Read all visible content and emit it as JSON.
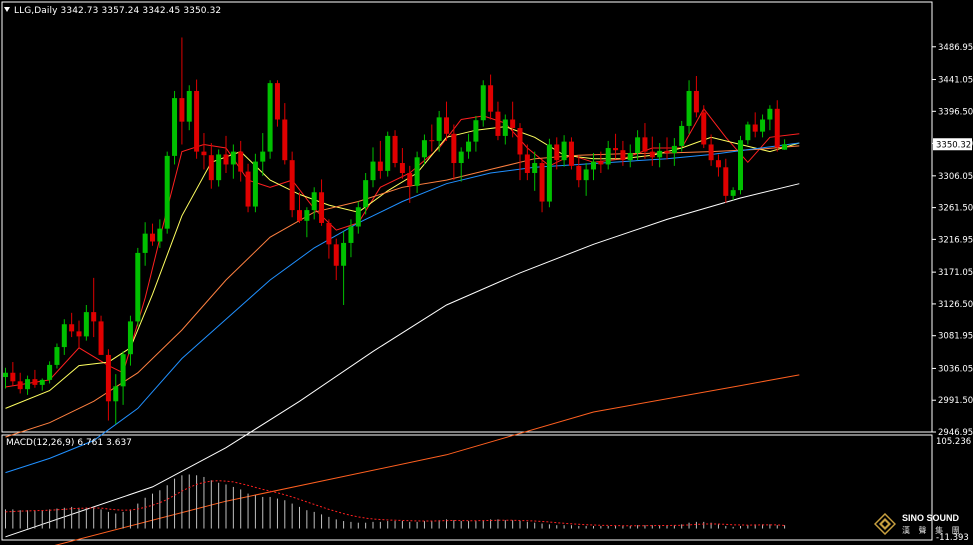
{
  "header": {
    "symbol": "LLG,Daily",
    "open": "3342.73",
    "high": "3357.24",
    "low": "3342.45",
    "close": "3350.32"
  },
  "macd": {
    "label": "MACD(12,26,9)",
    "main": "6.761",
    "signal": "3.637",
    "scale_top": "105.236",
    "scale_bottom": "-11.393"
  },
  "logo": {
    "brand": "SINO SOUND",
    "cn": "漢 聲 集 團"
  },
  "colors": {
    "background": "#000000",
    "bull": "#00c000",
    "bear": "#e00000",
    "ma_red": "#ff2020",
    "ma_yellow": "#ffff60",
    "ma_orange": "#ff8040",
    "ma_blue": "#2090ff",
    "ma_white": "#ffffff",
    "ma_slow_orange": "#ff6020",
    "macd_hist": "#c0c0c0",
    "macd_signal": "#ff2020"
  },
  "chart_data": {
    "type": "candlestick",
    "title": "LLG,Daily",
    "ylim": [
      2946.95,
      3531.5
    ],
    "yticks": [
      "3486.95",
      "3441.05",
      "3396.50",
      "3351.50",
      "3306.05",
      "3261.50",
      "3216.95",
      "3171.05",
      "3126.50",
      "3081.95",
      "3036.05",
      "2991.50",
      "2946.95"
    ],
    "current_price": "3350.32",
    "candles": [
      [
        3024,
        3037,
        3008,
        3030
      ],
      [
        3030,
        3045,
        3012,
        3018
      ],
      [
        3018,
        3030,
        3001,
        3007
      ],
      [
        3007,
        3026,
        2999,
        3021
      ],
      [
        3021,
        3034,
        3009,
        3013
      ],
      [
        3013,
        3022,
        3005,
        3020
      ],
      [
        3020,
        3046,
        3015,
        3041
      ],
      [
        3041,
        3071,
        3036,
        3066
      ],
      [
        3066,
        3105,
        3055,
        3098
      ],
      [
        3098,
        3114,
        3080,
        3088
      ],
      [
        3088,
        3103,
        3065,
        3081
      ],
      [
        3081,
        3125,
        3075,
        3115
      ],
      [
        3115,
        3163,
        3080,
        3102
      ],
      [
        3102,
        3110,
        3060,
        3055
      ],
      [
        3055,
        3063,
        2963,
        2990
      ],
      [
        2990,
        3028,
        2958,
        3011
      ],
      [
        3011,
        3060,
        2985,
        3056
      ],
      [
        3056,
        3110,
        3040,
        3102
      ],
      [
        3102,
        3205,
        3095,
        3198
      ],
      [
        3198,
        3241,
        3180,
        3225
      ],
      [
        3225,
        3239,
        3208,
        3214
      ],
      [
        3214,
        3245,
        3205,
        3232
      ],
      [
        3232,
        3340,
        3225,
        3334
      ],
      [
        3334,
        3425,
        3322,
        3415
      ],
      [
        3415,
        3500,
        3350,
        3382
      ],
      [
        3382,
        3433,
        3370,
        3425
      ],
      [
        3425,
        3441,
        3330,
        3340
      ],
      [
        3340,
        3366,
        3315,
        3335
      ],
      [
        3335,
        3352,
        3288,
        3300
      ],
      [
        3300,
        3343,
        3291,
        3336
      ],
      [
        3336,
        3362,
        3310,
        3322
      ],
      [
        3322,
        3350,
        3302,
        3340
      ],
      [
        3340,
        3355,
        3298,
        3312
      ],
      [
        3312,
        3323,
        3255,
        3263
      ],
      [
        3263,
        3337,
        3255,
        3326
      ],
      [
        3326,
        3366,
        3306,
        3340
      ],
      [
        3340,
        3440,
        3330,
        3436
      ],
      [
        3436,
        3440,
        3375,
        3385
      ],
      [
        3385,
        3408,
        3322,
        3328
      ],
      [
        3328,
        3340,
        3248,
        3258
      ],
      [
        3258,
        3283,
        3240,
        3243
      ],
      [
        3243,
        3262,
        3220,
        3258
      ],
      [
        3258,
        3290,
        3245,
        3283
      ],
      [
        3283,
        3301,
        3236,
        3240
      ],
      [
        3240,
        3245,
        3190,
        3210
      ],
      [
        3210,
        3218,
        3160,
        3180
      ],
      [
        3180,
        3228,
        3125,
        3212
      ],
      [
        3212,
        3245,
        3192,
        3235
      ],
      [
        3235,
        3270,
        3225,
        3262
      ],
      [
        3262,
        3310,
        3252,
        3300
      ],
      [
        3300,
        3346,
        3290,
        3326
      ],
      [
        3326,
        3355,
        3302,
        3313
      ],
      [
        3313,
        3368,
        3305,
        3362
      ],
      [
        3362,
        3370,
        3318,
        3324
      ],
      [
        3324,
        3345,
        3302,
        3310
      ],
      [
        3310,
        3320,
        3268,
        3292
      ],
      [
        3292,
        3340,
        3282,
        3332
      ],
      [
        3332,
        3364,
        3322,
        3356
      ],
      [
        3356,
        3378,
        3340,
        3355
      ],
      [
        3355,
        3397,
        3340,
        3388
      ],
      [
        3388,
        3410,
        3355,
        3365
      ],
      [
        3365,
        3378,
        3300,
        3324
      ],
      [
        3324,
        3346,
        3298,
        3340
      ],
      [
        3340,
        3365,
        3330,
        3354
      ],
      [
        3354,
        3390,
        3340,
        3384
      ],
      [
        3384,
        3440,
        3375,
        3433
      ],
      [
        3433,
        3448,
        3385,
        3396
      ],
      [
        3396,
        3410,
        3356,
        3362
      ],
      [
        3362,
        3392,
        3350,
        3385
      ],
      [
        3385,
        3410,
        3360,
        3373
      ],
      [
        3373,
        3380,
        3300,
        3336
      ],
      [
        3336,
        3350,
        3300,
        3310
      ],
      [
        3310,
        3340,
        3285,
        3324
      ],
      [
        3324,
        3330,
        3255,
        3270
      ],
      [
        3270,
        3358,
        3262,
        3350
      ],
      [
        3350,
        3360,
        3315,
        3328
      ],
      [
        3328,
        3363,
        3319,
        3354
      ],
      [
        3354,
        3360,
        3315,
        3320
      ],
      [
        3320,
        3335,
        3290,
        3300
      ],
      [
        3300,
        3324,
        3278,
        3315
      ],
      [
        3315,
        3338,
        3300,
        3326
      ],
      [
        3326,
        3340,
        3310,
        3322
      ],
      [
        3322,
        3355,
        3315,
        3345
      ],
      [
        3345,
        3365,
        3330,
        3342
      ],
      [
        3342,
        3355,
        3320,
        3328
      ],
      [
        3328,
        3350,
        3318,
        3338
      ],
      [
        3338,
        3370,
        3328,
        3360
      ],
      [
        3360,
        3380,
        3330,
        3340
      ],
      [
        3340,
        3361,
        3320,
        3332
      ],
      [
        3332,
        3352,
        3318,
        3341
      ],
      [
        3341,
        3360,
        3329,
        3338
      ],
      [
        3338,
        3359,
        3320,
        3348
      ],
      [
        3348,
        3383,
        3340,
        3376
      ],
      [
        3376,
        3440,
        3365,
        3425
      ],
      [
        3425,
        3446,
        3388,
        3395
      ],
      [
        3395,
        3405,
        3345,
        3350
      ],
      [
        3350,
        3364,
        3320,
        3328
      ],
      [
        3328,
        3336,
        3305,
        3318
      ],
      [
        3318,
        3330,
        3268,
        3278
      ],
      [
        3278,
        3290,
        3272,
        3286
      ],
      [
        3286,
        3362,
        3280,
        3356
      ],
      [
        3356,
        3382,
        3350,
        3378
      ],
      [
        3378,
        3395,
        3360,
        3368
      ],
      [
        3368,
        3392,
        3360,
        3385
      ],
      [
        3385,
        3405,
        3370,
        3400
      ],
      [
        3400,
        3412,
        3340,
        3346
      ],
      [
        3342.73,
        3357.24,
        3342.45,
        3350.32
      ]
    ],
    "macd_hist": [
      23,
      23,
      22,
      22,
      22,
      22,
      23,
      24,
      25,
      26,
      25,
      25,
      25,
      23,
      20,
      18,
      20,
      23,
      30,
      37,
      42,
      46,
      52,
      60,
      64,
      65,
      64,
      62,
      58,
      55,
      53,
      50,
      47,
      42,
      40,
      38,
      38,
      36,
      34,
      30,
      26,
      22,
      20,
      17,
      14,
      11,
      9,
      8,
      7,
      7,
      8,
      8,
      9,
      9,
      9,
      8,
      8,
      9,
      9,
      10,
      11,
      10,
      9,
      9,
      9,
      10,
      11,
      11,
      10,
      10,
      9,
      8,
      7,
      6,
      5,
      4,
      4,
      4,
      3,
      3,
      3,
      3,
      3,
      3,
      3,
      3,
      4,
      4,
      4,
      4,
      4,
      4,
      5,
      7,
      8,
      8,
      7,
      5,
      3,
      2,
      3,
      4,
      5,
      5,
      5,
      4,
      4
    ],
    "macd_signal": [
      20,
      20.5,
      21,
      21.2,
      21.5,
      21.7,
      22,
      22.5,
      23,
      23.8,
      24.2,
      24.5,
      24.7,
      24.5,
      23.5,
      22.5,
      22,
      22.2,
      23.5,
      25.5,
      28,
      31,
      35,
      40,
      45,
      49.5,
      53,
      55.5,
      57,
      57.5,
      57,
      56,
      54,
      52,
      49.5,
      47,
      45,
      43,
      40.5,
      38,
      35,
      32,
      29,
      26,
      23,
      20.5,
      18,
      15.8,
      14,
      12.5,
      11.5,
      10.8,
      10.3,
      10,
      9.7,
      9.4,
      9.2,
      9.1,
      9,
      9.2,
      9.5,
      9.6,
      9.5,
      9.4,
      9.4,
      9.5,
      9.7,
      9.9,
      9.9,
      9.9,
      9.7,
      9.4,
      9,
      8.5,
      7.8,
      7,
      6.3,
      5.7,
      5.1,
      4.6,
      4.2,
      3.9,
      3.7,
      3.5,
      3.4,
      3.3,
      3.3,
      3.4,
      3.5,
      3.6,
      3.6,
      3.7,
      3.9,
      4.4,
      5,
      5.4,
      5.6,
      5.5,
      5,
      4.5,
      4.2,
      4.1,
      4.2,
      4.3,
      4.4,
      4.3,
      3.637
    ],
    "moving_averages": [
      {
        "color": "ma_red",
        "anchors": [
          [
            0,
            3010
          ],
          [
            6,
            3020
          ],
          [
            10,
            3065
          ],
          [
            14,
            3040
          ],
          [
            16,
            3030
          ],
          [
            19,
            3135
          ],
          [
            22,
            3260
          ],
          [
            24,
            3340
          ],
          [
            27,
            3350
          ],
          [
            30,
            3345
          ],
          [
            33,
            3300
          ],
          [
            36,
            3290
          ],
          [
            39,
            3300
          ],
          [
            42,
            3260
          ],
          [
            45,
            3230
          ],
          [
            48,
            3240
          ],
          [
            51,
            3290
          ],
          [
            55,
            3310
          ],
          [
            59,
            3345
          ],
          [
            62,
            3385
          ],
          [
            65,
            3390
          ],
          [
            68,
            3380
          ],
          [
            71,
            3345
          ],
          [
            74,
            3320
          ],
          [
            77,
            3335
          ],
          [
            80,
            3325
          ],
          [
            84,
            3330
          ],
          [
            88,
            3345
          ],
          [
            92,
            3345
          ],
          [
            95,
            3400
          ],
          [
            98,
            3360
          ],
          [
            101,
            3325
          ],
          [
            104,
            3360
          ],
          [
            108,
            3365
          ]
        ]
      },
      {
        "color": "ma_yellow",
        "anchors": [
          [
            0,
            2980
          ],
          [
            6,
            3005
          ],
          [
            10,
            3040
          ],
          [
            14,
            3045
          ],
          [
            17,
            3065
          ],
          [
            20,
            3140
          ],
          [
            24,
            3250
          ],
          [
            28,
            3325
          ],
          [
            32,
            3340
          ],
          [
            36,
            3300
          ],
          [
            40,
            3280
          ],
          [
            44,
            3265
          ],
          [
            48,
            3255
          ],
          [
            52,
            3285
          ],
          [
            56,
            3310
          ],
          [
            60,
            3360
          ],
          [
            64,
            3370
          ],
          [
            68,
            3375
          ],
          [
            72,
            3360
          ],
          [
            76,
            3335
          ],
          [
            80,
            3330
          ],
          [
            84,
            3330
          ],
          [
            88,
            3335
          ],
          [
            92,
            3345
          ],
          [
            96,
            3360
          ],
          [
            100,
            3350
          ],
          [
            104,
            3340
          ],
          [
            108,
            3352
          ]
        ]
      },
      {
        "color": "ma_orange",
        "anchors": [
          [
            0,
            2940
          ],
          [
            6,
            2960
          ],
          [
            12,
            2990
          ],
          [
            18,
            3030
          ],
          [
            24,
            3090
          ],
          [
            30,
            3160
          ],
          [
            36,
            3220
          ],
          [
            42,
            3255
          ],
          [
            48,
            3270
          ],
          [
            54,
            3290
          ],
          [
            60,
            3300
          ],
          [
            66,
            3315
          ],
          [
            72,
            3330
          ],
          [
            78,
            3335
          ],
          [
            84,
            3337
          ],
          [
            90,
            3338
          ],
          [
            96,
            3340
          ],
          [
            102,
            3343
          ],
          [
            108,
            3348
          ]
        ]
      },
      {
        "color": "ma_blue",
        "anchors": [
          [
            0,
            2890
          ],
          [
            6,
            2910
          ],
          [
            12,
            2935
          ],
          [
            18,
            2980
          ],
          [
            24,
            3050
          ],
          [
            30,
            3105
          ],
          [
            36,
            3160
          ],
          [
            42,
            3205
          ],
          [
            48,
            3240
          ],
          [
            54,
            3270
          ],
          [
            60,
            3295
          ],
          [
            66,
            3310
          ],
          [
            72,
            3318
          ],
          [
            78,
            3322
          ],
          [
            84,
            3326
          ],
          [
            90,
            3330
          ],
          [
            96,
            3336
          ],
          [
            102,
            3344
          ],
          [
            108,
            3352
          ]
        ]
      },
      {
        "color": "ma_white",
        "anchors": [
          [
            0,
            2800
          ],
          [
            20,
            2870
          ],
          [
            30,
            2925
          ],
          [
            40,
            2990
          ],
          [
            50,
            3060
          ],
          [
            60,
            3125
          ],
          [
            70,
            3170
          ],
          [
            80,
            3210
          ],
          [
            90,
            3245
          ],
          [
            100,
            3275
          ],
          [
            108,
            3295
          ]
        ]
      },
      {
        "color": "ma_slow_orange",
        "anchors": [
          [
            0,
            2770
          ],
          [
            30,
            2850
          ],
          [
            60,
            2915
          ],
          [
            80,
            2975
          ],
          [
            100,
            3012
          ],
          [
            108,
            3027
          ]
        ]
      }
    ]
  }
}
